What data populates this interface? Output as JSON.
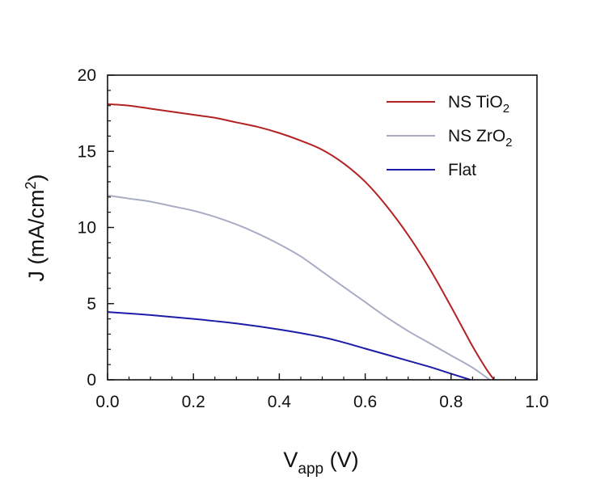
{
  "chart_data": {
    "type": "line",
    "xlabel_main": "V",
    "xlabel_sub": "app",
    "xlabel_unit": " (V)",
    "ylabel_pre": "J (mA/cm",
    "ylabel_sup": "2",
    "ylabel_post": ")",
    "xlim": [
      0.0,
      1.0
    ],
    "ylim": [
      0,
      20
    ],
    "xticks": [
      "0.0",
      "0.2",
      "0.4",
      "0.6",
      "0.8",
      "1.0"
    ],
    "yticks": [
      "0",
      "5",
      "10",
      "15",
      "20"
    ],
    "legend_position": "top-right",
    "grid": false,
    "series": [
      {
        "name": "NS TiO2",
        "legend_main": "NS TiO",
        "legend_sub": "2",
        "color": "#b22222",
        "x": [
          0.0,
          0.05,
          0.1,
          0.15,
          0.2,
          0.25,
          0.3,
          0.35,
          0.4,
          0.45,
          0.5,
          0.55,
          0.6,
          0.65,
          0.7,
          0.75,
          0.8,
          0.85,
          0.88,
          0.9
        ],
        "y": [
          18.1,
          18.0,
          17.8,
          17.6,
          17.4,
          17.2,
          16.9,
          16.6,
          16.2,
          15.7,
          15.1,
          14.2,
          13.0,
          11.4,
          9.5,
          7.3,
          4.8,
          2.2,
          0.8,
          0.0
        ]
      },
      {
        "name": "NS ZrO2",
        "legend_main": "NS ZrO",
        "legend_sub": "2",
        "color": "#a9adc4",
        "x": [
          0.0,
          0.05,
          0.1,
          0.15,
          0.2,
          0.25,
          0.3,
          0.35,
          0.4,
          0.45,
          0.5,
          0.55,
          0.6,
          0.65,
          0.7,
          0.75,
          0.8,
          0.85,
          0.89
        ],
        "y": [
          12.1,
          11.9,
          11.7,
          11.4,
          11.1,
          10.7,
          10.2,
          9.6,
          8.9,
          8.1,
          7.1,
          6.1,
          5.1,
          4.1,
          3.2,
          2.4,
          1.6,
          0.8,
          0.0
        ]
      },
      {
        "name": "Flat",
        "legend_main": "Flat",
        "legend_sub": "",
        "color": "#1c1ca8",
        "x": [
          0.0,
          0.1,
          0.2,
          0.3,
          0.4,
          0.5,
          0.55,
          0.6,
          0.65,
          0.7,
          0.75,
          0.8,
          0.845
        ],
        "y": [
          4.45,
          4.25,
          4.0,
          3.7,
          3.3,
          2.8,
          2.45,
          2.05,
          1.65,
          1.25,
          0.85,
          0.4,
          0.0
        ]
      }
    ]
  }
}
